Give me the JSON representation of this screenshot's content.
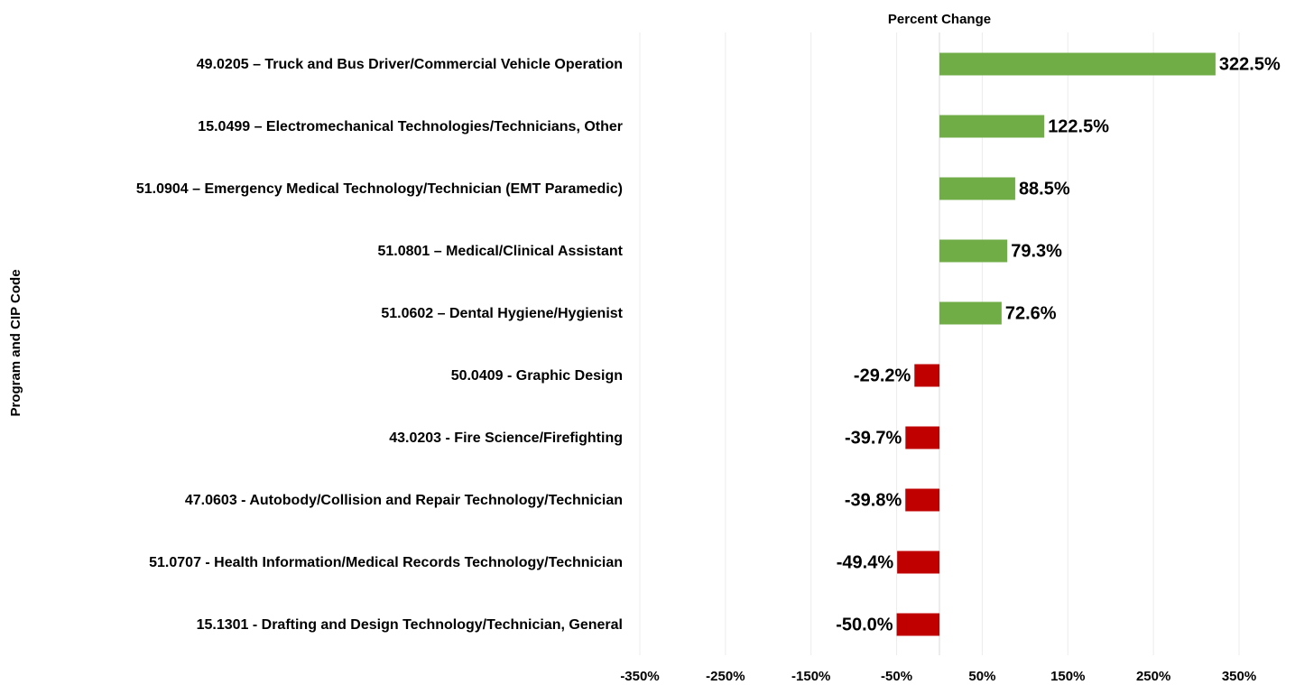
{
  "chart_data": {
    "type": "barh",
    "x_label": "Percent Change",
    "y_label": "Program and CIP Code",
    "categories": [
      "49.0205 – Truck and Bus Driver/Commercial Vehicle Operation",
      "15.0499 – Electromechanical Technologies/Technicians, Other",
      "51.0904 – Emergency Medical Technology/Technician (EMT Paramedic)",
      "51.0801 – Medical/Clinical Assistant",
      "51.0602 – Dental Hygiene/Hygienist",
      "50.0409 - Graphic Design",
      "43.0203 - Fire Science/Firefighting",
      "47.0603 - Autobody/Collision and Repair Technology/Technician",
      "51.0707 - Health Information/Medical Records Technology/Technician",
      "15.1301 - Drafting and Design Technology/Technician, General"
    ],
    "values": [
      322.5,
      122.5,
      88.5,
      79.3,
      72.6,
      -29.2,
      -39.7,
      -39.8,
      -49.4,
      -50.0
    ],
    "value_labels": [
      "322.5%",
      "122.5%",
      "88.5%",
      "79.3%",
      "72.6%",
      "-29.2%",
      "-39.7%",
      "-39.8%",
      "-49.4%",
      "-50.0%"
    ],
    "colors": [
      "#70ad47",
      "#70ad47",
      "#70ad47",
      "#70ad47",
      "#70ad47",
      "#c00000",
      "#c00000",
      "#c00000",
      "#c00000",
      "#c00000"
    ],
    "xlim": [
      -350,
      350
    ],
    "xticks": [
      {
        "value": -350,
        "label": "-350%"
      },
      {
        "value": -250,
        "label": "-250%"
      },
      {
        "value": -150,
        "label": "-150%"
      },
      {
        "value": -50,
        "label": "-50%"
      },
      {
        "value": 50,
        "label": "50%"
      },
      {
        "value": 150,
        "label": "150%"
      },
      {
        "value": 250,
        "label": "250%"
      },
      {
        "value": 350,
        "label": "350%"
      }
    ],
    "grid": true
  }
}
